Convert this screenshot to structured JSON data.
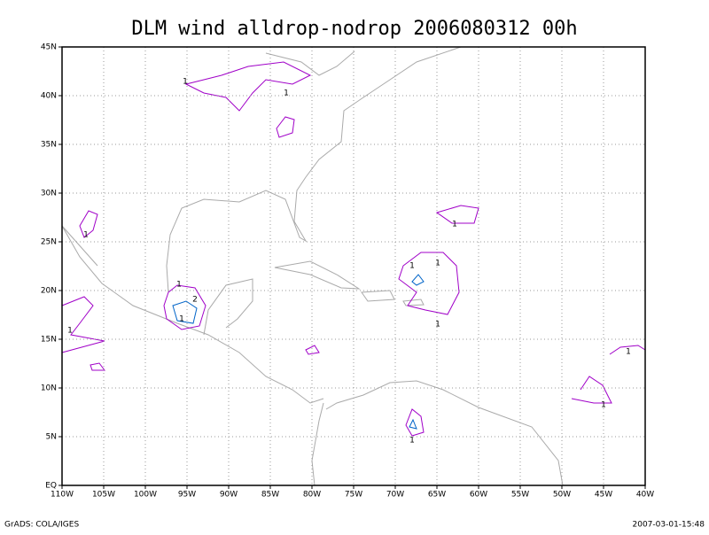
{
  "title": "DLM wind alldrop-nodrop 2006080312 00h",
  "lon_ticks": [
    {
      "value": -110,
      "label": "110W"
    },
    {
      "value": -105,
      "label": "105W"
    },
    {
      "value": -100,
      "label": "100W"
    },
    {
      "value": -95,
      "label": "95W"
    },
    {
      "value": -90,
      "label": "90W"
    },
    {
      "value": -85,
      "label": "85W"
    },
    {
      "value": -80,
      "label": "80W"
    },
    {
      "value": -75,
      "label": "75W"
    },
    {
      "value": -70,
      "label": "70W"
    },
    {
      "value": -65,
      "label": "65W"
    },
    {
      "value": -60,
      "label": "60W"
    },
    {
      "value": -55,
      "label": "55W"
    },
    {
      "value": -50,
      "label": "50W"
    },
    {
      "value": -45,
      "label": "45W"
    },
    {
      "value": -40,
      "label": "40W"
    }
  ],
  "lat_ticks": [
    {
      "value": 0,
      "label": "EQ"
    },
    {
      "value": 5,
      "label": "5N"
    },
    {
      "value": 10,
      "label": "10N"
    },
    {
      "value": 15,
      "label": "15N"
    },
    {
      "value": 20,
      "label": "20N"
    },
    {
      "value": 25,
      "label": "25N"
    },
    {
      "value": 30,
      "label": "30N"
    },
    {
      "value": 35,
      "label": "35N"
    },
    {
      "value": 40,
      "label": "40N"
    },
    {
      "value": 45,
      "label": "45N"
    }
  ],
  "lon_range": [
    -110,
    -40
  ],
  "lat_range": [
    0,
    45
  ],
  "contour_labels": [
    "1",
    "1",
    "1",
    "1",
    "1",
    "2",
    "1",
    "1",
    "1",
    "1",
    "1",
    "1",
    "1",
    "1"
  ],
  "footer_left": "GrADS: COLA/IGES",
  "footer_right": "2007-03-01-15:48"
}
